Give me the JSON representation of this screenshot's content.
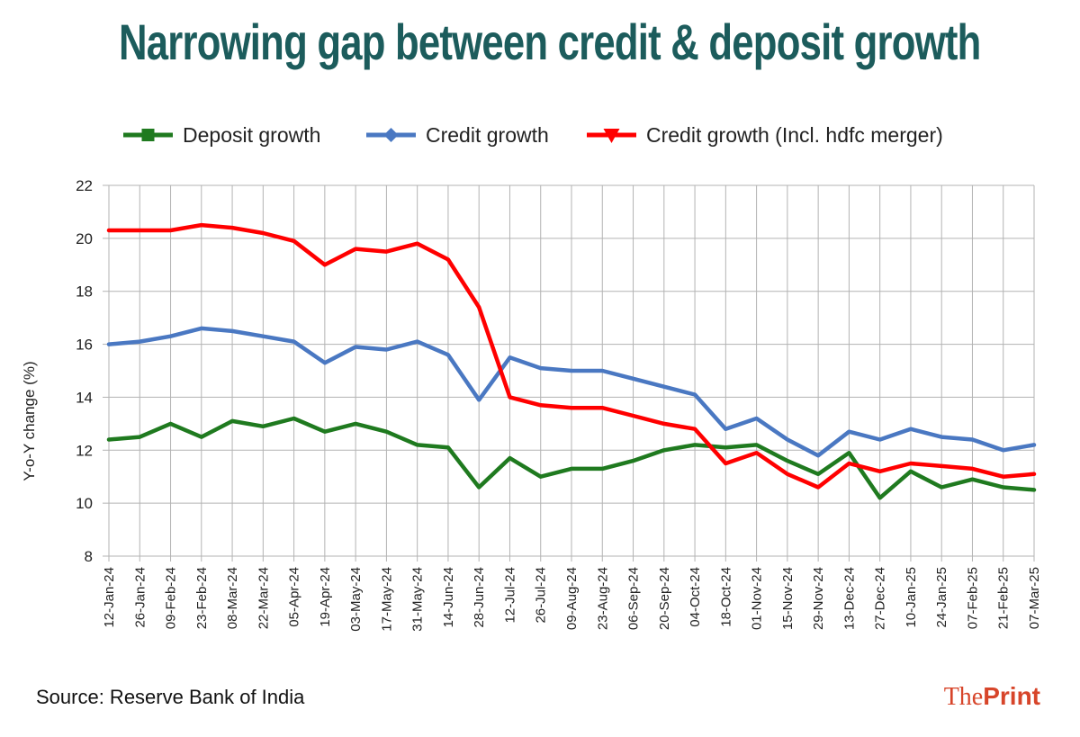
{
  "title": "Narrowing gap between credit & deposit growth",
  "source": "Source: Reserve Bank of India",
  "brand": {
    "part1": "The",
    "part2": "Print"
  },
  "chart_data": {
    "type": "line",
    "title": "Narrowing gap between credit & deposit growth",
    "xlabel": "",
    "ylabel": "Y-o-Y change (%)",
    "ylim": [
      8,
      22
    ],
    "yticks": [
      8,
      10,
      12,
      14,
      16,
      18,
      20,
      22
    ],
    "grid": true,
    "legend_position": "top",
    "categories": [
      "12-Jan-24",
      "26-Jan-24",
      "09-Feb-24",
      "23-Feb-24",
      "08-Mar-24",
      "22-Mar-24",
      "05-Apr-24",
      "19-Apr-24",
      "03-May-24",
      "17-May-24",
      "31-May-24",
      "14-Jun-24",
      "28-Jun-24",
      "12-Jul-24",
      "26-Jul-24",
      "09-Aug-24",
      "23-Aug-24",
      "06-Sep-24",
      "20-Sep-24",
      "04-Oct-24",
      "18-Oct-24",
      "01-Nov-24",
      "15-Nov-24",
      "29-Nov-24",
      "13-Dec-24",
      "27-Dec-24",
      "10-Jan-25",
      "24-Jan-25",
      "07-Feb-25",
      "21-Feb-25",
      "07-Mar-25"
    ],
    "series": [
      {
        "name": "Deposit growth",
        "color": "#1f7a1f",
        "marker": "square",
        "values": [
          12.4,
          12.5,
          13.0,
          12.5,
          13.1,
          12.9,
          13.2,
          12.7,
          13.0,
          12.7,
          12.2,
          12.1,
          10.6,
          11.7,
          11.0,
          11.3,
          11.3,
          11.6,
          12.0,
          12.2,
          12.1,
          12.2,
          11.6,
          11.1,
          11.9,
          10.2,
          11.2,
          10.6,
          10.9,
          10.6,
          10.5
        ]
      },
      {
        "name": "Credit growth",
        "color": "#4a78c2",
        "marker": "diamond",
        "values": [
          16.0,
          16.1,
          16.3,
          16.6,
          16.5,
          16.3,
          16.1,
          15.3,
          15.9,
          15.8,
          16.1,
          15.6,
          13.9,
          15.5,
          15.1,
          15.0,
          15.0,
          14.7,
          14.4,
          14.1,
          12.8,
          13.2,
          12.4,
          11.8,
          12.7,
          12.4,
          12.8,
          12.5,
          12.4,
          12.0,
          12.2
        ]
      },
      {
        "name": "Credit growth (Incl. hdfc merger)",
        "color": "#ff0000",
        "marker": "triangle-down",
        "values": [
          20.3,
          20.3,
          20.3,
          20.5,
          20.4,
          20.2,
          19.9,
          19.0,
          19.6,
          19.5,
          19.8,
          19.2,
          17.4,
          14.0,
          13.7,
          13.6,
          13.6,
          13.3,
          13.0,
          12.8,
          11.5,
          11.9,
          11.1,
          10.6,
          11.5,
          11.2,
          11.5,
          11.4,
          11.3,
          11.0,
          11.1
        ]
      }
    ]
  }
}
